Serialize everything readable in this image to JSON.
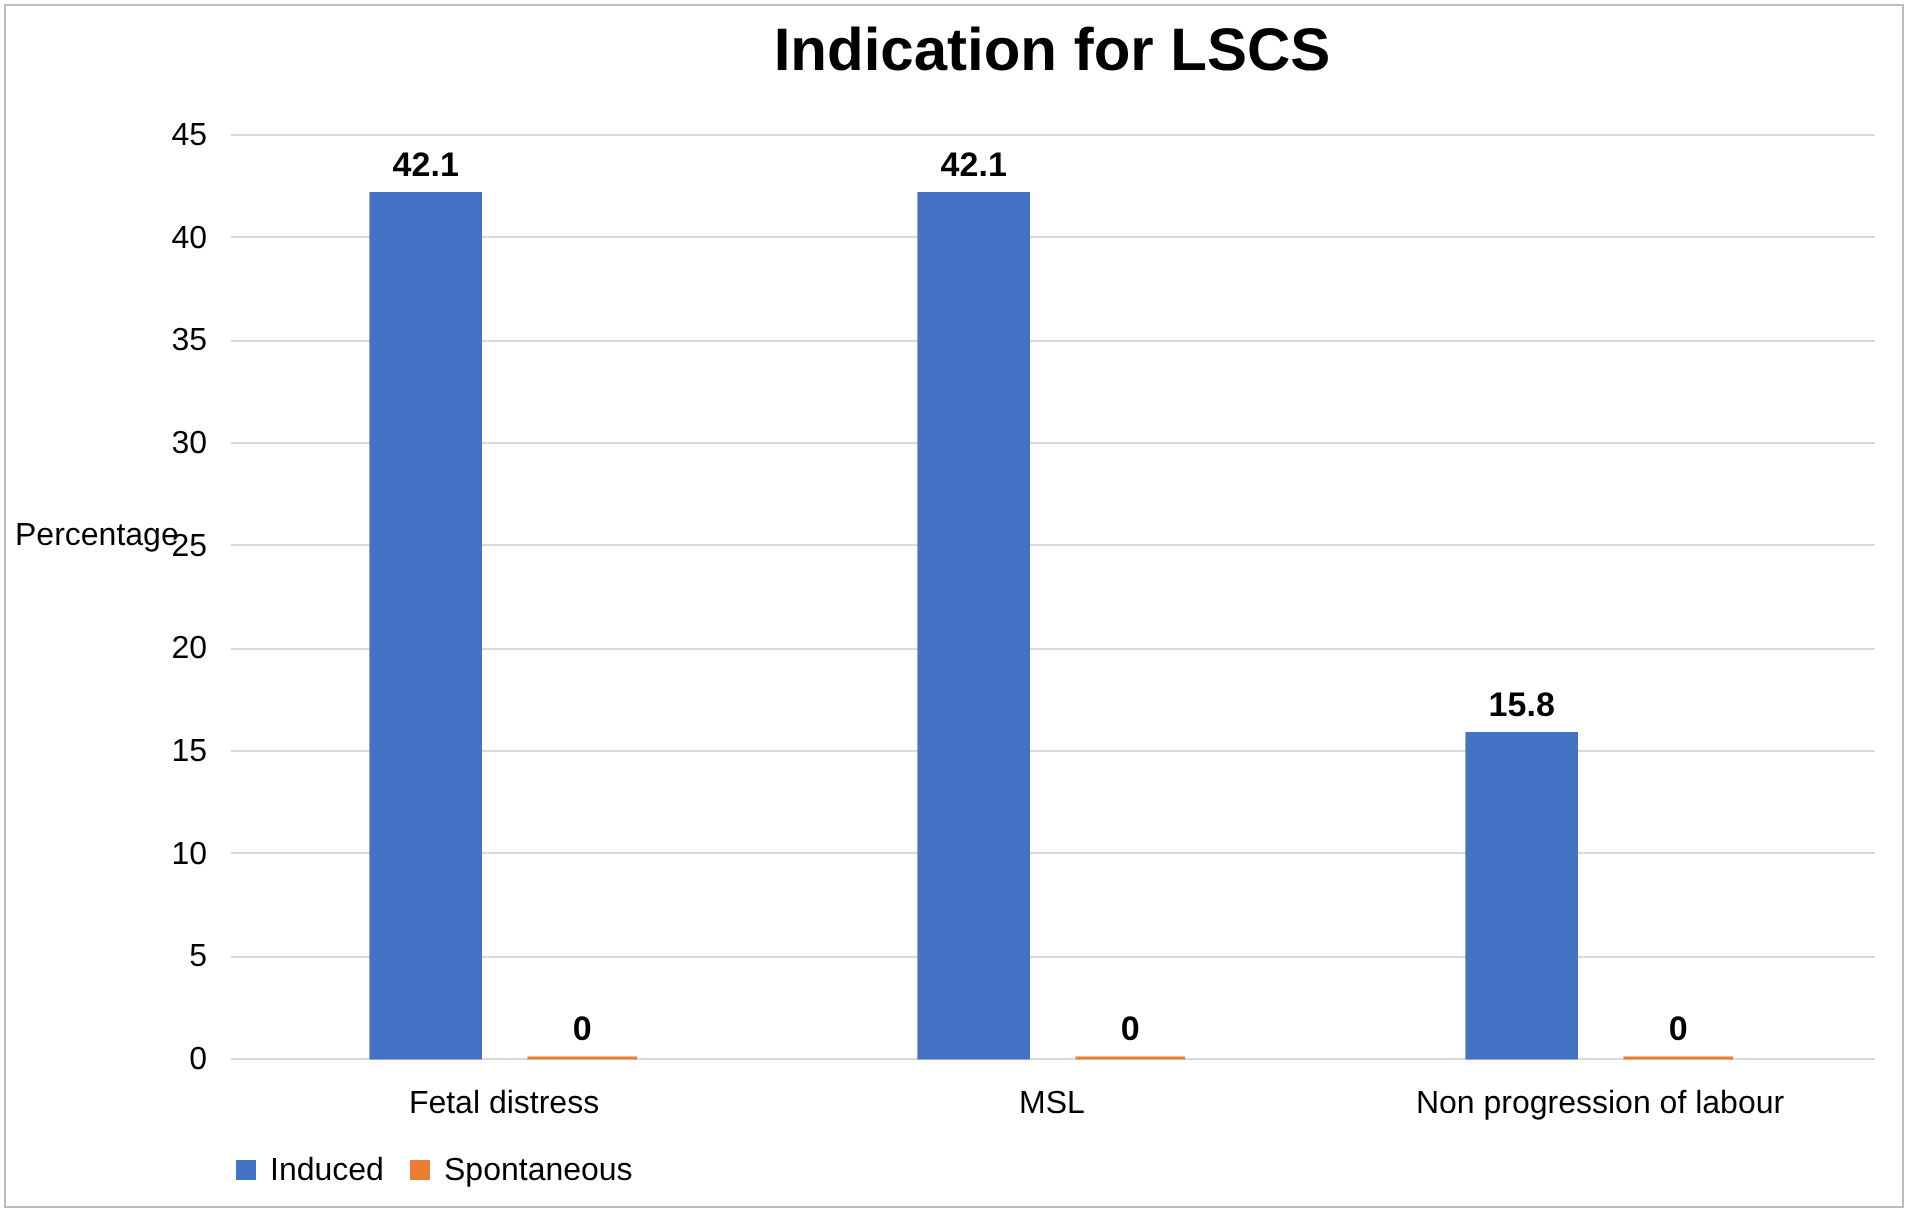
{
  "chart_data": {
    "type": "bar",
    "title": "Indication for LSCS",
    "ylabel": "Percentage",
    "categories": [
      "Fetal distress",
      "MSL",
      "Non progression of labour"
    ],
    "series": [
      {
        "name": "Induced",
        "color": "#4472c4",
        "values": [
          42.1,
          42.1,
          15.8
        ]
      },
      {
        "name": "Spontaneous",
        "color": "#ed7d31",
        "values": [
          0,
          0,
          0
        ]
      }
    ],
    "ylim": [
      0,
      45
    ],
    "yticks": [
      0,
      5,
      10,
      15,
      20,
      25,
      30,
      35,
      40,
      45
    ],
    "grid": "y",
    "legend": "bottom",
    "data_labels": true
  }
}
